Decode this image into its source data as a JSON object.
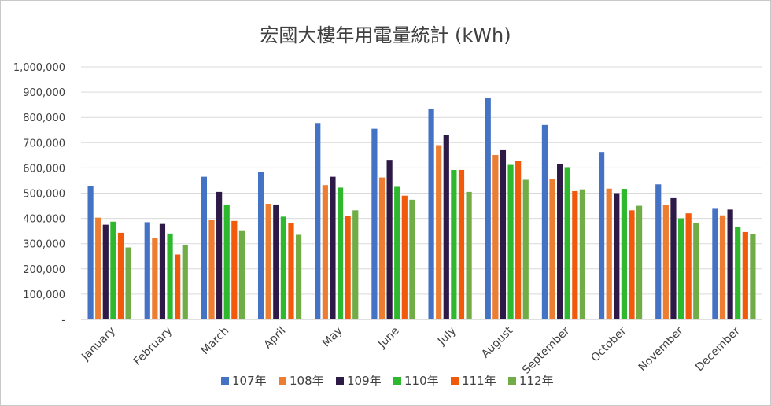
{
  "chart_data": {
    "type": "bar",
    "title": "宏國大樓年用電量統計 (kWh)",
    "xlabel": "",
    "ylabel": "",
    "ylim": [
      0,
      1000000
    ],
    "yticks": [
      0,
      100000,
      200000,
      300000,
      400000,
      500000,
      600000,
      700000,
      800000,
      900000,
      1000000
    ],
    "ytick_labels": [
      "-",
      "100,000",
      "200,000",
      "300,000",
      "400,000",
      "500,000",
      "600,000",
      "700,000",
      "800,000",
      "900,000",
      "1,000,000"
    ],
    "grid": true,
    "legend_position": "bottom",
    "categories": [
      "January",
      "February",
      "March",
      "April",
      "May",
      "June",
      "July",
      "August",
      "September",
      "October",
      "November",
      "December"
    ],
    "series": [
      {
        "name": "107年",
        "color": "#4472C4",
        "values": [
          527000,
          385000,
          565000,
          583000,
          778000,
          755000,
          835000,
          878000,
          770000,
          663000,
          535000,
          441000
        ]
      },
      {
        "name": "108年",
        "color": "#ED7D31",
        "values": [
          403000,
          323000,
          393000,
          458000,
          532000,
          562000,
          690000,
          651000,
          557000,
          518000,
          452000,
          412000
        ]
      },
      {
        "name": "109年",
        "color": "#2E1A47",
        "values": [
          375000,
          378000,
          505000,
          455000,
          565000,
          632000,
          730000,
          670000,
          615000,
          500000,
          480000,
          435000
        ]
      },
      {
        "name": "110年",
        "color": "#2DB82D",
        "values": [
          387000,
          340000,
          455000,
          407000,
          522000,
          525000,
          592000,
          612000,
          603000,
          517000,
          400000,
          367000
        ]
      },
      {
        "name": "111年",
        "color": "#F15A0A",
        "values": [
          343000,
          257000,
          390000,
          382000,
          411000,
          490000,
          592000,
          627000,
          508000,
          432000,
          420000,
          346000
        ]
      },
      {
        "name": "112年",
        "color": "#70AD47",
        "values": [
          285000,
          293000,
          353000,
          335000,
          432000,
          474000,
          505000,
          553000,
          515000,
          450000,
          383000,
          339000
        ]
      }
    ]
  }
}
